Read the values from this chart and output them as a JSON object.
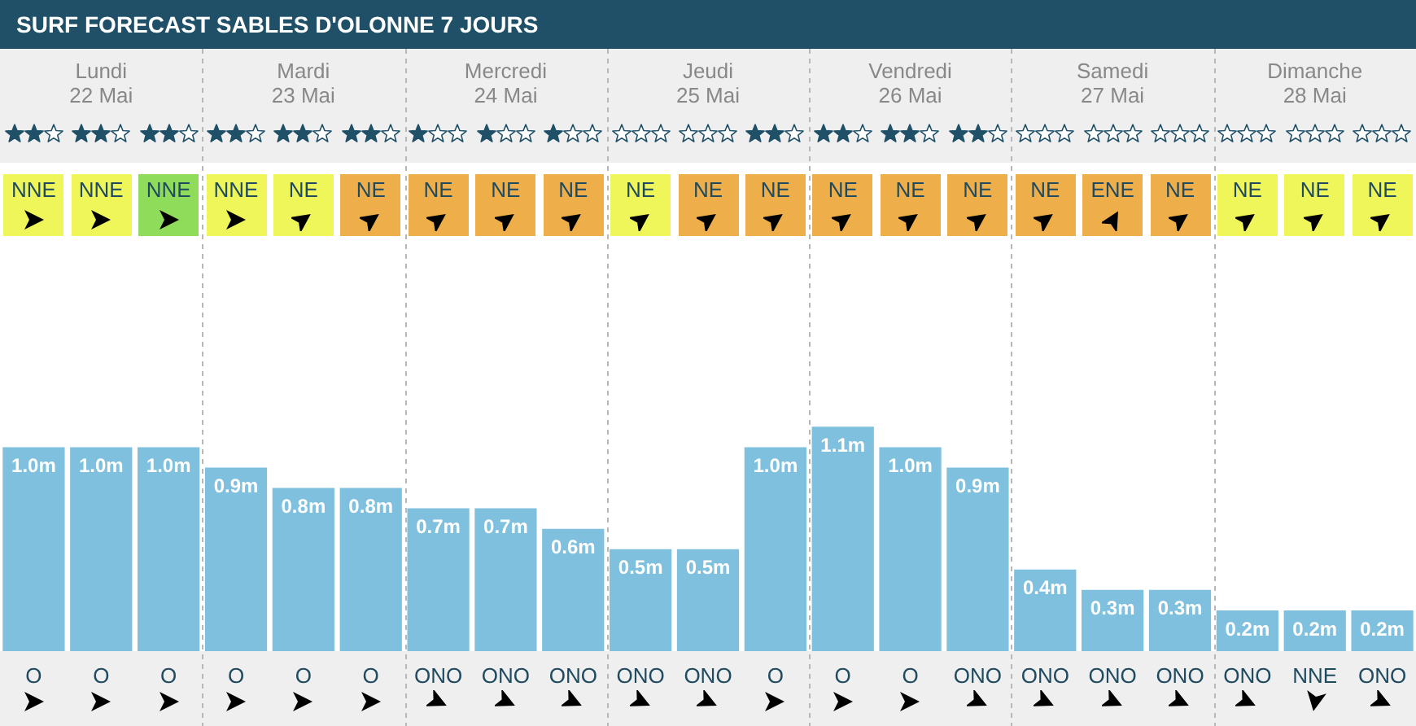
{
  "chart_data": {
    "type": "bar",
    "title": "SURF FORECAST SABLES D'OLONNE 7 JOURS",
    "categories": [
      "O",
      "O",
      "O",
      "O",
      "O",
      "O",
      "ONO",
      "ONO",
      "ONO",
      "ONO",
      "ONO",
      "O",
      "O",
      "O",
      "ONO",
      "ONO",
      "ONO",
      "ONO",
      "ONO",
      "NNE",
      "ONO"
    ],
    "values": [
      1.0,
      1.0,
      1.0,
      0.9,
      0.8,
      0.8,
      0.7,
      0.7,
      0.6,
      0.5,
      0.5,
      1.0,
      1.1,
      1.0,
      0.9,
      0.4,
      0.3,
      0.3,
      0.2,
      0.2,
      0.2
    ],
    "value_labels": [
      "1.0m",
      "1.0m",
      "1.0m",
      "0.9m",
      "0.8m",
      "0.8m",
      "0.7m",
      "0.7m",
      "0.6m",
      "0.5m",
      "0.5m",
      "1.0m",
      "1.1m",
      "1.0m",
      "0.9m",
      "0.4m",
      "0.3m",
      "0.3m",
      "0.2m",
      "0.2m",
      "0.2m"
    ],
    "color": "#7ec0dd",
    "annotations": [
      "Lundi",
      "22 Mai",
      "Mardi",
      "23 Mai",
      "Mercredi",
      "24 Mai",
      "Jeudi",
      "25 Mai",
      "Vendredi",
      "26 Mai",
      "Samedi",
      "27 Mai",
      "Dimanche",
      "28 Mai",
      "NNE",
      "NNE",
      "NNE",
      "NNE",
      "NE",
      "NE",
      "NE",
      "NE",
      "NE",
      "NE",
      "NE",
      "NE",
      "NE",
      "NE",
      "NE",
      "NE",
      "ENE",
      "NE",
      "NE",
      "NE",
      "NE"
    ]
  }
}
